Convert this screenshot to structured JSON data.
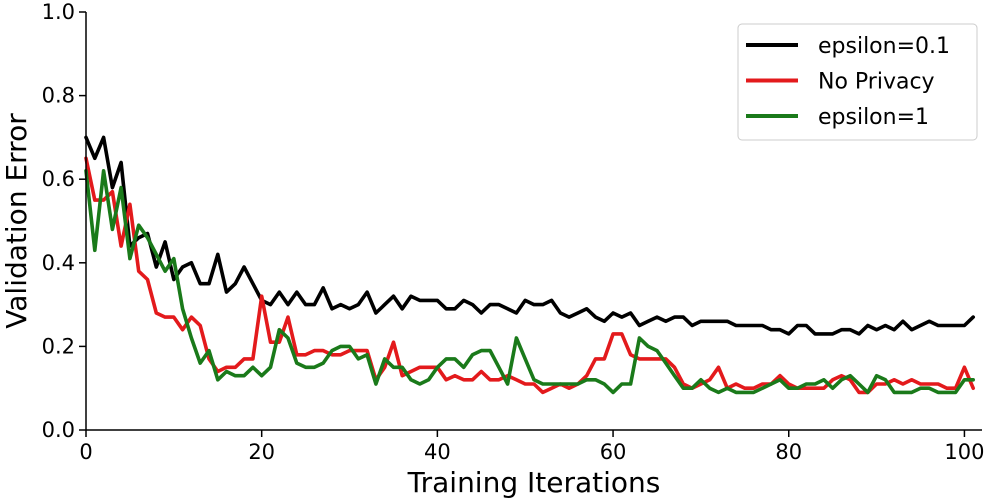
{
  "chart_data": {
    "type": "line",
    "xlabel": "Training Iterations",
    "ylabel": "Validation Error",
    "xlim": [
      0,
      102
    ],
    "ylim": [
      0.0,
      1.0
    ],
    "xticks": [
      0,
      20,
      40,
      60,
      80,
      100
    ],
    "yticks": [
      0.0,
      0.2,
      0.4,
      0.6,
      0.8,
      1.0
    ],
    "xtick_labels": [
      "0",
      "20",
      "40",
      "60",
      "80",
      "100"
    ],
    "ytick_labels": [
      "0.0",
      "0.2",
      "0.4",
      "0.6",
      "0.8",
      "1.0"
    ],
    "grid": false,
    "legend_position": "top-right",
    "series": [
      {
        "name": "epsilon=0.1",
        "color": "#000000",
        "x": [
          0,
          1,
          2,
          3,
          4,
          5,
          6,
          7,
          8,
          9,
          10,
          11,
          12,
          13,
          14,
          15,
          16,
          17,
          18,
          19,
          20,
          21,
          22,
          23,
          24,
          25,
          26,
          27,
          28,
          29,
          30,
          31,
          32,
          33,
          34,
          35,
          36,
          37,
          38,
          39,
          40,
          41,
          42,
          43,
          44,
          45,
          46,
          47,
          48,
          49,
          50,
          51,
          52,
          53,
          54,
          55,
          56,
          57,
          58,
          59,
          60,
          61,
          62,
          63,
          64,
          65,
          66,
          67,
          68,
          69,
          70,
          71,
          72,
          73,
          74,
          75,
          76,
          77,
          78,
          79,
          80,
          81,
          82,
          83,
          84,
          85,
          86,
          87,
          88,
          89,
          90,
          91,
          92,
          93,
          94,
          95,
          96,
          97,
          98,
          99,
          100,
          101
        ],
        "y": [
          0.7,
          0.65,
          0.7,
          0.58,
          0.64,
          0.44,
          0.46,
          0.47,
          0.39,
          0.45,
          0.36,
          0.39,
          0.4,
          0.35,
          0.35,
          0.42,
          0.33,
          0.35,
          0.39,
          0.35,
          0.31,
          0.3,
          0.33,
          0.3,
          0.33,
          0.3,
          0.3,
          0.34,
          0.29,
          0.3,
          0.29,
          0.3,
          0.33,
          0.28,
          0.3,
          0.32,
          0.29,
          0.32,
          0.31,
          0.31,
          0.31,
          0.29,
          0.29,
          0.31,
          0.3,
          0.28,
          0.3,
          0.3,
          0.29,
          0.28,
          0.31,
          0.3,
          0.3,
          0.31,
          0.28,
          0.27,
          0.28,
          0.29,
          0.27,
          0.26,
          0.28,
          0.27,
          0.28,
          0.25,
          0.26,
          0.27,
          0.26,
          0.27,
          0.27,
          0.25,
          0.26,
          0.26,
          0.26,
          0.26,
          0.25,
          0.25,
          0.25,
          0.25,
          0.24,
          0.24,
          0.23,
          0.25,
          0.25,
          0.23,
          0.23,
          0.23,
          0.24,
          0.24,
          0.23,
          0.25,
          0.24,
          0.25,
          0.24,
          0.26,
          0.24,
          0.25,
          0.26,
          0.25,
          0.25,
          0.25,
          0.25,
          0.27
        ]
      },
      {
        "name": "No Privacy",
        "color": "#e31a1c",
        "x": [
          0,
          1,
          2,
          3,
          4,
          5,
          6,
          7,
          8,
          9,
          10,
          11,
          12,
          13,
          14,
          15,
          16,
          17,
          18,
          19,
          20,
          21,
          22,
          23,
          24,
          25,
          26,
          27,
          28,
          29,
          30,
          31,
          32,
          33,
          34,
          35,
          36,
          37,
          38,
          39,
          40,
          41,
          42,
          43,
          44,
          45,
          46,
          47,
          48,
          49,
          50,
          51,
          52,
          53,
          54,
          55,
          56,
          57,
          58,
          59,
          60,
          61,
          62,
          63,
          64,
          65,
          66,
          67,
          68,
          69,
          70,
          71,
          72,
          73,
          74,
          75,
          76,
          77,
          78,
          79,
          80,
          81,
          82,
          83,
          84,
          85,
          86,
          87,
          88,
          89,
          90,
          91,
          92,
          93,
          94,
          95,
          96,
          97,
          98,
          99,
          100,
          101
        ],
        "y": [
          0.65,
          0.55,
          0.55,
          0.57,
          0.44,
          0.54,
          0.38,
          0.36,
          0.28,
          0.27,
          0.27,
          0.24,
          0.27,
          0.25,
          0.17,
          0.14,
          0.15,
          0.15,
          0.17,
          0.17,
          0.32,
          0.21,
          0.21,
          0.27,
          0.18,
          0.18,
          0.19,
          0.19,
          0.18,
          0.18,
          0.19,
          0.19,
          0.19,
          0.12,
          0.15,
          0.21,
          0.13,
          0.14,
          0.15,
          0.15,
          0.15,
          0.12,
          0.13,
          0.12,
          0.12,
          0.14,
          0.12,
          0.12,
          0.13,
          0.12,
          0.11,
          0.11,
          0.09,
          0.1,
          0.11,
          0.1,
          0.11,
          0.13,
          0.17,
          0.17,
          0.23,
          0.23,
          0.18,
          0.17,
          0.17,
          0.17,
          0.17,
          0.15,
          0.11,
          0.1,
          0.11,
          0.12,
          0.15,
          0.1,
          0.11,
          0.1,
          0.1,
          0.11,
          0.11,
          0.13,
          0.11,
          0.1,
          0.1,
          0.1,
          0.1,
          0.12,
          0.13,
          0.12,
          0.09,
          0.09,
          0.11,
          0.11,
          0.12,
          0.11,
          0.12,
          0.11,
          0.11,
          0.11,
          0.1,
          0.1,
          0.15,
          0.1
        ]
      },
      {
        "name": "epsilon=1",
        "color": "#1a7a1a",
        "x": [
          0,
          1,
          2,
          3,
          4,
          5,
          6,
          7,
          8,
          9,
          10,
          11,
          12,
          13,
          14,
          15,
          16,
          17,
          18,
          19,
          20,
          21,
          22,
          23,
          24,
          25,
          26,
          27,
          28,
          29,
          30,
          31,
          32,
          33,
          34,
          35,
          36,
          37,
          38,
          39,
          40,
          41,
          42,
          43,
          44,
          45,
          46,
          47,
          48,
          49,
          50,
          51,
          52,
          53,
          54,
          55,
          56,
          57,
          58,
          59,
          60,
          61,
          62,
          63,
          64,
          65,
          66,
          67,
          68,
          69,
          70,
          71,
          72,
          73,
          74,
          75,
          76,
          77,
          78,
          79,
          80,
          81,
          82,
          83,
          84,
          85,
          86,
          87,
          88,
          89,
          90,
          91,
          92,
          93,
          94,
          95,
          96,
          97,
          98,
          99,
          100,
          101
        ],
        "y": [
          0.62,
          0.43,
          0.62,
          0.48,
          0.58,
          0.41,
          0.49,
          0.46,
          0.42,
          0.38,
          0.41,
          0.29,
          0.22,
          0.16,
          0.19,
          0.12,
          0.14,
          0.13,
          0.13,
          0.15,
          0.13,
          0.15,
          0.24,
          0.22,
          0.16,
          0.15,
          0.15,
          0.16,
          0.19,
          0.2,
          0.2,
          0.17,
          0.18,
          0.11,
          0.17,
          0.15,
          0.15,
          0.12,
          0.11,
          0.12,
          0.15,
          0.17,
          0.17,
          0.15,
          0.18,
          0.19,
          0.19,
          0.15,
          0.11,
          0.22,
          0.17,
          0.12,
          0.11,
          0.11,
          0.11,
          0.11,
          0.11,
          0.12,
          0.12,
          0.11,
          0.09,
          0.11,
          0.11,
          0.22,
          0.2,
          0.19,
          0.16,
          0.13,
          0.1,
          0.1,
          0.12,
          0.1,
          0.09,
          0.1,
          0.09,
          0.09,
          0.09,
          0.1,
          0.11,
          0.12,
          0.1,
          0.1,
          0.11,
          0.11,
          0.12,
          0.1,
          0.12,
          0.13,
          0.11,
          0.09,
          0.13,
          0.12,
          0.09,
          0.09,
          0.09,
          0.1,
          0.1,
          0.09,
          0.09,
          0.09,
          0.12,
          0.12
        ]
      }
    ]
  }
}
